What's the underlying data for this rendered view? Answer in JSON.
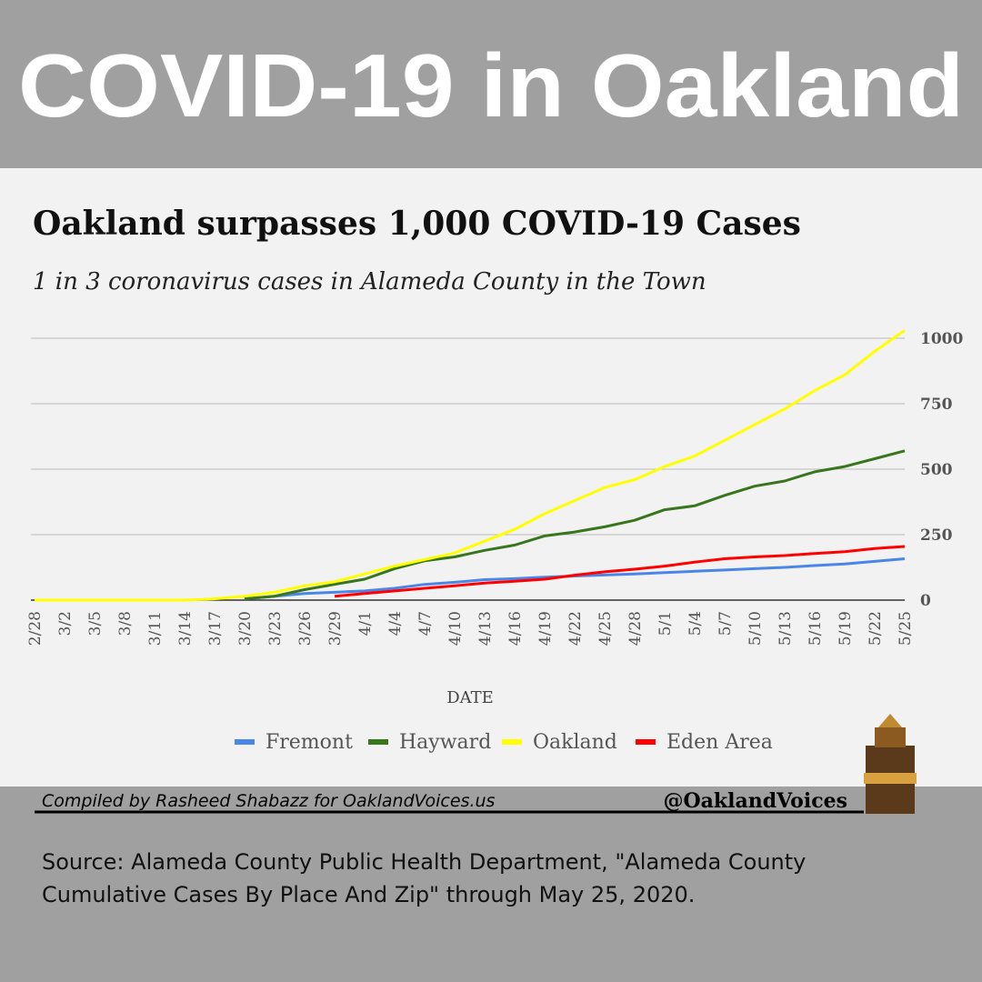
{
  "header": {
    "title": "COVID-19 in Oakland"
  },
  "chart_data": {
    "type": "line",
    "title": "Oakland surpasses 1,000 COVID-19 Cases",
    "subtitle": "1 in 3 coronavirus cases in Alameda County in the Town",
    "x_label": "DATE",
    "categories": [
      "2/28",
      "3/2",
      "3/5",
      "3/8",
      "3/11",
      "3/14",
      "3/17",
      "3/20",
      "3/23",
      "3/26",
      "3/29",
      "4/1",
      "4/4",
      "4/7",
      "4/10",
      "4/13",
      "4/16",
      "4/19",
      "4/22",
      "4/25",
      "4/28",
      "5/1",
      "5/4",
      "5/7",
      "5/10",
      "5/13",
      "5/16",
      "5/19",
      "5/22",
      "5/25"
    ],
    "series": [
      {
        "name": "Fremont",
        "color": "#4a86e8",
        "values": [
          null,
          null,
          null,
          null,
          null,
          null,
          null,
          5,
          15,
          25,
          30,
          35,
          45,
          60,
          68,
          78,
          82,
          88,
          92,
          96,
          100,
          105,
          110,
          115,
          120,
          125,
          132,
          138,
          148,
          158
        ]
      },
      {
        "name": "Hayward",
        "color": "#38761d",
        "values": [
          null,
          null,
          null,
          null,
          null,
          null,
          null,
          5,
          15,
          40,
          60,
          80,
          120,
          150,
          165,
          190,
          210,
          245,
          260,
          280,
          305,
          345,
          360,
          400,
          435,
          455,
          490,
          510,
          540,
          570
        ]
      },
      {
        "name": "Oakland",
        "color": "#ffff00",
        "values": [
          0,
          0,
          0,
          0,
          0,
          0,
          5,
          15,
          30,
          55,
          70,
          100,
          130,
          155,
          180,
          225,
          270,
          330,
          380,
          430,
          460,
          510,
          550,
          610,
          670,
          730,
          800,
          860,
          950,
          1030
        ]
      },
      {
        "name": "Eden Area",
        "color": "#ff0000",
        "values": [
          null,
          null,
          null,
          null,
          null,
          null,
          null,
          null,
          null,
          null,
          15,
          25,
          35,
          45,
          55,
          65,
          72,
          80,
          95,
          108,
          118,
          130,
          145,
          158,
          165,
          170,
          178,
          185,
          197,
          205
        ]
      }
    ],
    "ylim": [
      0,
      1050
    ],
    "yticks": [
      0,
      250,
      500,
      750,
      1000
    ],
    "grid": true,
    "legend": "bottom"
  },
  "footer": {
    "credit": "Compiled by Rasheed Shabazz for OaklandVoices.us",
    "handle": "@OaklandVoices",
    "source": "Source: Alameda County Public Health Department, \"Alameda County Cumulative Cases By Place And Zip\" through May 25, 2020."
  }
}
